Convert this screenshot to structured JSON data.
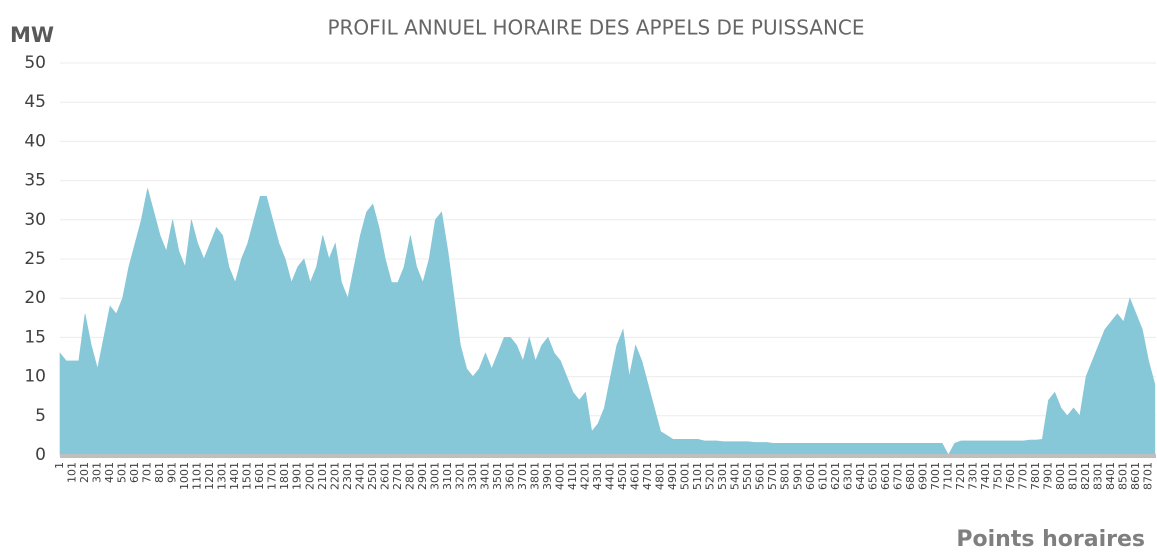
{
  "chart_data": {
    "type": "area",
    "title": "PROFIL ANNUEL HORAIRE DES APPELS DE PUISSANCE",
    "y_label": "MW",
    "x_label": "Points horaires",
    "color": "#86c7d8",
    "grid": true,
    "xlim": [
      1,
      8760
    ],
    "ylim": [
      0,
      50
    ],
    "yticks": [
      0,
      5,
      10,
      15,
      20,
      25,
      30,
      35,
      40,
      45,
      50
    ],
    "xticks": [
      1,
      101,
      201,
      301,
      401,
      501,
      601,
      701,
      801,
      901,
      1001,
      1101,
      1201,
      1301,
      1401,
      1501,
      1601,
      1701,
      1801,
      1901,
      2001,
      2101,
      2201,
      2301,
      2401,
      2501,
      2601,
      2701,
      2801,
      2901,
      3001,
      3101,
      3201,
      3301,
      3401,
      3501,
      3601,
      3701,
      3801,
      3901,
      4001,
      4101,
      4201,
      4301,
      4401,
      4501,
      4601,
      4701,
      4801,
      4901,
      5001,
      5101,
      5201,
      5301,
      5401,
      5501,
      5601,
      5701,
      5801,
      5901,
      6001,
      6101,
      6201,
      6301,
      6401,
      6501,
      6601,
      6701,
      6801,
      6901,
      7001,
      7101,
      7201,
      7301,
      7401,
      7501,
      7601,
      7701,
      7801,
      7901,
      8001,
      8101,
      8201,
      8301,
      8401,
      8501,
      8601,
      8701
    ],
    "x": [
      1,
      51,
      101,
      151,
      201,
      251,
      301,
      351,
      401,
      451,
      501,
      551,
      601,
      651,
      701,
      751,
      801,
      851,
      901,
      951,
      1001,
      1051,
      1101,
      1151,
      1201,
      1251,
      1301,
      1351,
      1401,
      1451,
      1501,
      1551,
      1601,
      1651,
      1701,
      1751,
      1801,
      1851,
      1901,
      1951,
      2001,
      2051,
      2101,
      2151,
      2201,
      2251,
      2301,
      2351,
      2401,
      2451,
      2501,
      2551,
      2601,
      2651,
      2701,
      2751,
      2801,
      2851,
      2901,
      2951,
      3001,
      3051,
      3101,
      3151,
      3201,
      3251,
      3301,
      3351,
      3401,
      3451,
      3501,
      3551,
      3601,
      3651,
      3701,
      3751,
      3801,
      3851,
      3901,
      3951,
      4001,
      4051,
      4101,
      4151,
      4201,
      4251,
      4301,
      4351,
      4401,
      4451,
      4501,
      4551,
      4601,
      4651,
      4701,
      4751,
      4801,
      4851,
      4901,
      4951,
      5001,
      5051,
      5101,
      5151,
      5201,
      5251,
      5301,
      5351,
      5401,
      5451,
      5501,
      5551,
      5601,
      5651,
      5701,
      5751,
      5801,
      5851,
      5901,
      5951,
      6001,
      6051,
      6101,
      6151,
      6201,
      6251,
      6301,
      6351,
      6401,
      6451,
      6501,
      6551,
      6601,
      6651,
      6701,
      6751,
      6801,
      6851,
      6901,
      6951,
      7001,
      7051,
      7101,
      7151,
      7201,
      7251,
      7301,
      7351,
      7401,
      7451,
      7501,
      7551,
      7601,
      7651,
      7701,
      7751,
      7801,
      7851,
      7901,
      7951,
      8001,
      8051,
      8101,
      8151,
      8201,
      8251,
      8301,
      8351,
      8401,
      8451,
      8501,
      8551,
      8601,
      8651,
      8701,
      8751
    ],
    "values": [
      13,
      12,
      12,
      12,
      18,
      14,
      11,
      15,
      19,
      18,
      20,
      24,
      27,
      30,
      34,
      31,
      28,
      26,
      30,
      26,
      24,
      30,
      27,
      25,
      27,
      29,
      28,
      24,
      22,
      25,
      27,
      30,
      33,
      33,
      30,
      27,
      25,
      22,
      24,
      25,
      22,
      24,
      28,
      25,
      27,
      22,
      20,
      24,
      28,
      31,
      32,
      29,
      25,
      22,
      22,
      24,
      28,
      24,
      22,
      25,
      30,
      31,
      26,
      20,
      14,
      11,
      10,
      11,
      13,
      11,
      13,
      15,
      15,
      14,
      12,
      15,
      12,
      14,
      15,
      13,
      12,
      10,
      8,
      7,
      8,
      3,
      4,
      6,
      10,
      14,
      16,
      10,
      14,
      12,
      9,
      6,
      3,
      2.5,
      2,
      2,
      2,
      2,
      2,
      1.8,
      1.8,
      1.8,
      1.7,
      1.7,
      1.7,
      1.7,
      1.7,
      1.6,
      1.6,
      1.6,
      1.5,
      1.5,
      1.5,
      1.5,
      1.5,
      1.5,
      1.5,
      1.5,
      1.5,
      1.5,
      1.5,
      1.5,
      1.5,
      1.5,
      1.5,
      1.5,
      1.5,
      1.5,
      1.5,
      1.5,
      1.5,
      1.5,
      1.5,
      1.5,
      1.5,
      1.5,
      1.5,
      1.5,
      0,
      1.5,
      1.8,
      1.8,
      1.8,
      1.8,
      1.8,
      1.8,
      1.8,
      1.8,
      1.8,
      1.8,
      1.8,
      1.9,
      1.9,
      2,
      7,
      8,
      6,
      5,
      6,
      5,
      10,
      12,
      14,
      16,
      17,
      18,
      17,
      20,
      18,
      16,
      12,
      9
    ]
  }
}
